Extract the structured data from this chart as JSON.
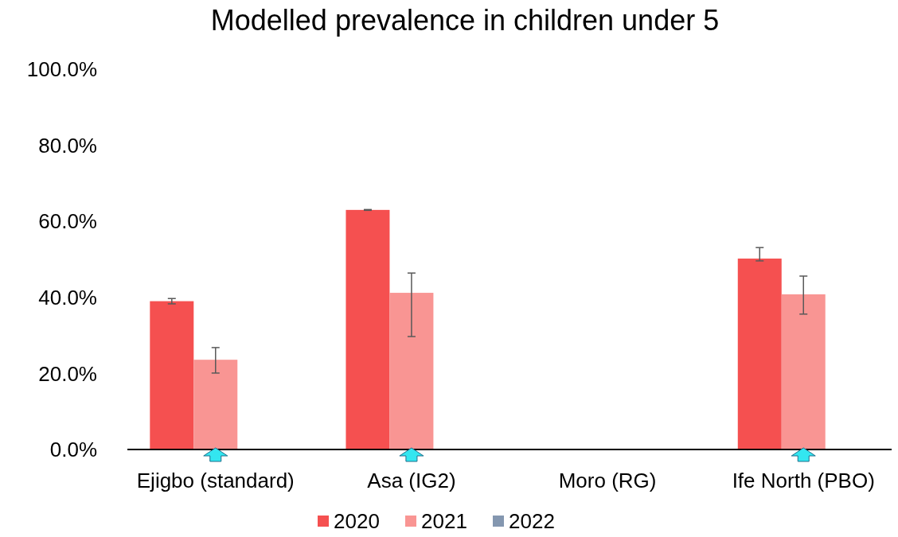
{
  "chart_data": {
    "type": "bar",
    "title": "Modelled prevalence in children under 5",
    "categories": [
      "Ejigbo (standard)",
      "Asa (IG2)",
      "Moro (RG)",
      "Ife North (PBO)"
    ],
    "series": [
      {
        "name": "2020",
        "color": "#f55050",
        "values": [
          39.0,
          63.0,
          null,
          50.2
        ],
        "errors": [
          [
            38.3,
            39.7
          ],
          [
            62.9,
            63.1
          ],
          null,
          [
            49.6,
            53.1
          ]
        ]
      },
      {
        "name": "2021",
        "color": "#f99593",
        "values": [
          23.6,
          41.2,
          null,
          40.8
        ],
        "errors": [
          [
            20.1,
            26.8
          ],
          [
            29.7,
            46.4
          ],
          null,
          [
            35.6,
            45.6
          ]
        ]
      },
      {
        "name": "2022",
        "color": "#8497b0",
        "values": [
          null,
          null,
          null,
          null
        ]
      }
    ],
    "ylim": [
      0,
      100
    ],
    "yticks": [
      {
        "value": 0,
        "label": "0.0%"
      },
      {
        "value": 20,
        "label": "20.0%"
      },
      {
        "value": 40,
        "label": "40.0%"
      },
      {
        "value": 60,
        "label": "60.0%"
      },
      {
        "value": 80,
        "label": "80.0%"
      },
      {
        "value": 100,
        "label": "100.0%"
      }
    ],
    "grid": false,
    "legend": "bottom"
  }
}
